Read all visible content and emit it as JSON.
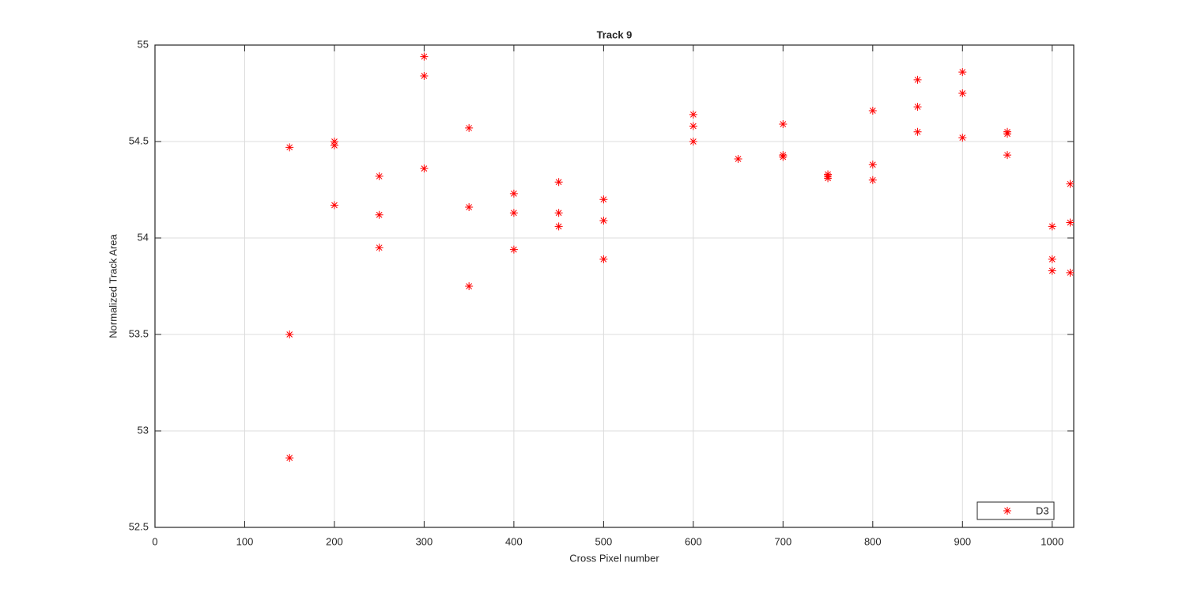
{
  "chart_data": {
    "type": "scatter",
    "title": "Track 9",
    "x_label": "Cross Pixel number",
    "y_label": "Normalized Track Area",
    "series": [
      {
        "name": "D3",
        "color": "#ff0000",
        "marker": "asterisk",
        "x": [
          150,
          150,
          150,
          200,
          200,
          200,
          250,
          250,
          250,
          300,
          300,
          300,
          350,
          350,
          350,
          400,
          400,
          400,
          450,
          450,
          450,
          500,
          500,
          500,
          600,
          600,
          600,
          650,
          700,
          700,
          700,
          750,
          750,
          750,
          800,
          800,
          800,
          850,
          850,
          850,
          900,
          900,
          900,
          950,
          950,
          950,
          1000,
          1000,
          1000,
          1020,
          1020,
          1020
        ],
        "values": [
          54.47,
          53.5,
          52.86,
          54.5,
          54.48,
          54.17,
          54.32,
          54.12,
          53.95,
          54.94,
          54.84,
          54.36,
          54.57,
          54.16,
          53.75,
          54.23,
          54.13,
          53.94,
          54.29,
          54.13,
          54.06,
          54.2,
          54.09,
          53.89,
          54.64,
          54.58,
          54.5,
          54.41,
          54.59,
          54.43,
          54.42,
          54.33,
          54.32,
          54.31,
          54.66,
          54.38,
          54.3,
          54.82,
          54.68,
          54.55,
          54.86,
          54.75,
          54.52,
          54.55,
          54.54,
          54.43,
          54.06,
          53.89,
          53.83,
          54.28,
          54.08,
          53.82
        ]
      }
    ],
    "xlim": [
      0,
      1024
    ],
    "ylim": [
      52.5,
      55
    ],
    "xticks": [
      0,
      100,
      200,
      300,
      400,
      500,
      600,
      700,
      800,
      900,
      1000
    ],
    "yticks": [
      52.5,
      53,
      53.5,
      54,
      54.5,
      55
    ],
    "grid": true,
    "legend": "southeast"
  }
}
